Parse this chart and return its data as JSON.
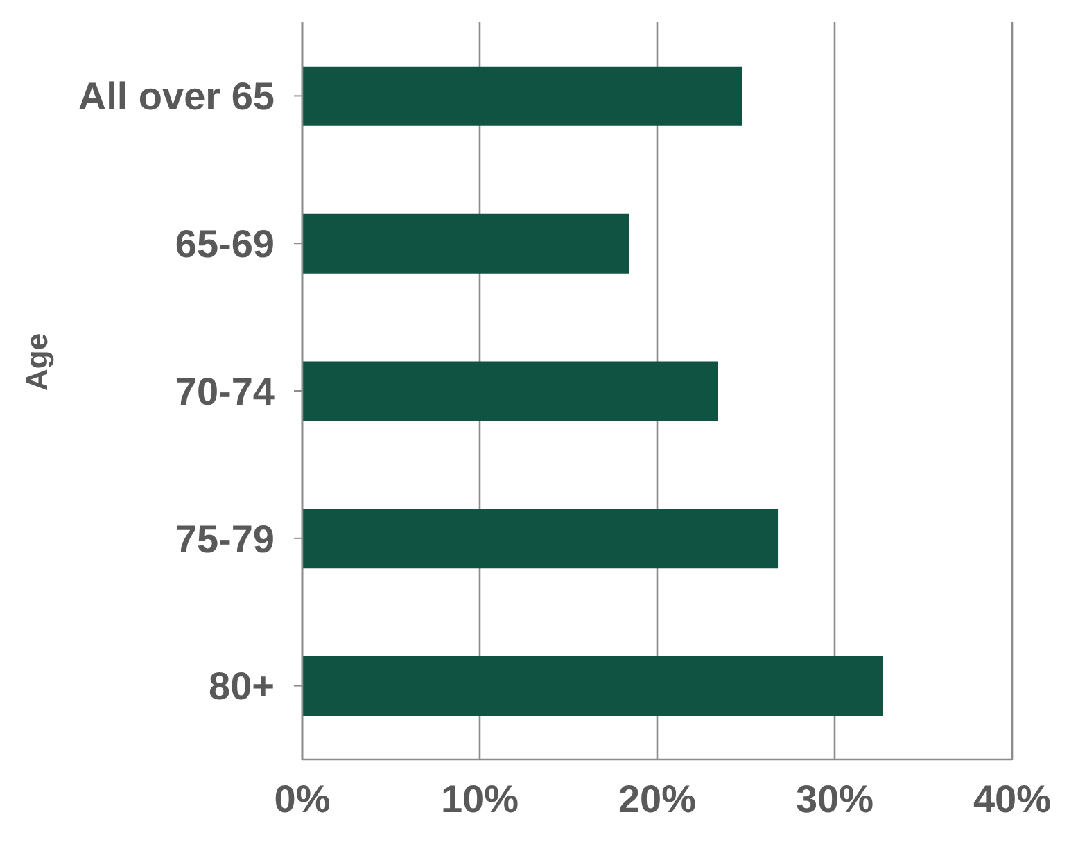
{
  "chart_data": {
    "type": "bar",
    "orientation": "horizontal",
    "ylabel": "Age",
    "categories": [
      "All over 65",
      "65-69",
      "70-74",
      "75-79",
      "80+"
    ],
    "values": [
      24.8,
      18.4,
      23.4,
      26.8,
      32.7
    ],
    "color": "#115343",
    "xlim": [
      0,
      40
    ],
    "xticks": [
      {
        "value": 0,
        "label": "0%"
      },
      {
        "value": 10,
        "label": "10%"
      },
      {
        "value": 20,
        "label": "20%"
      },
      {
        "value": 30,
        "label": "30%"
      },
      {
        "value": 40,
        "label": "40%"
      }
    ],
    "grid": "x"
  }
}
